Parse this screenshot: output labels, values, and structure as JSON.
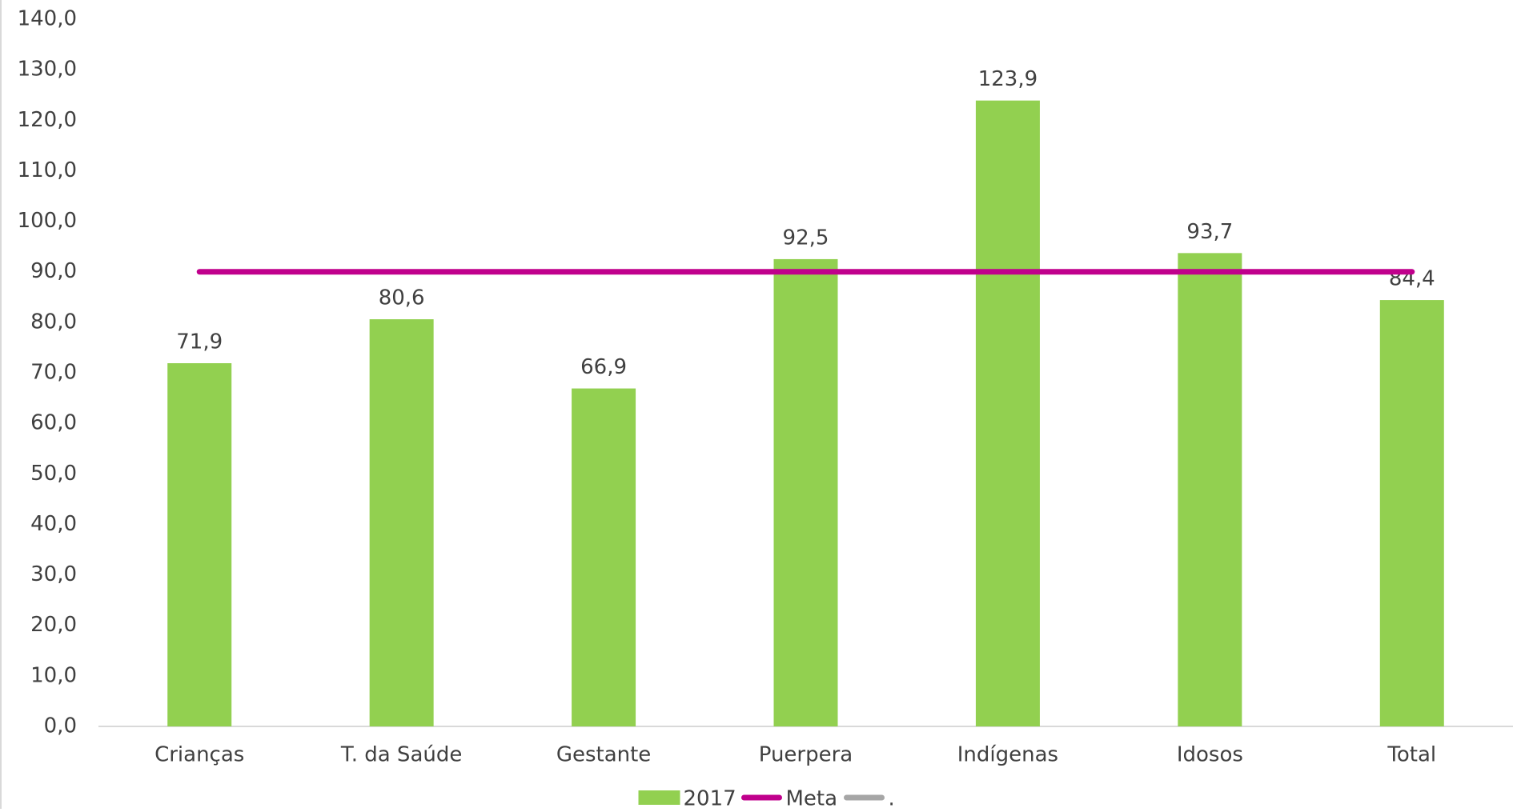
{
  "chart_data": {
    "type": "bar",
    "categories": [
      "Crianças",
      "T. da Saúde",
      "Gestante",
      "Puerpera",
      "Indígenas",
      "Idosos",
      "Total"
    ],
    "series": [
      {
        "name": "2017",
        "type": "bar",
        "color": "#92d050",
        "values": [
          71.9,
          80.6,
          66.9,
          92.5,
          123.9,
          93.7,
          84.4
        ],
        "value_labels": [
          "71,9",
          "80,6",
          "66,9",
          "92,5",
          "123,9",
          "93,7",
          "84,4"
        ]
      },
      {
        "name": "Meta",
        "type": "line",
        "color": "#c0008c",
        "values": [
          90,
          90,
          90,
          90,
          90,
          90,
          90
        ]
      },
      {
        "name": ".",
        "type": "line",
        "color": "#a6a6a6",
        "values": [
          null,
          null,
          null,
          null,
          null,
          null,
          null
        ]
      }
    ],
    "ylim": [
      0,
      140
    ],
    "yticks": [
      {
        "value": 0,
        "label": "0,0"
      },
      {
        "value": 10,
        "label": "10,0"
      },
      {
        "value": 20,
        "label": "20,0"
      },
      {
        "value": 30,
        "label": "30,0"
      },
      {
        "value": 40,
        "label": "40,0"
      },
      {
        "value": 50,
        "label": "50,0"
      },
      {
        "value": 60,
        "label": "60,0"
      },
      {
        "value": 70,
        "label": "70,0"
      },
      {
        "value": 80,
        "label": "80,0"
      },
      {
        "value": 90,
        "label": "90,0"
      },
      {
        "value": 100,
        "label": "100,0"
      },
      {
        "value": 110,
        "label": "110,0"
      },
      {
        "value": 120,
        "label": "120,0"
      },
      {
        "value": 130,
        "label": "130,0"
      },
      {
        "value": 140,
        "label": "140,0"
      }
    ],
    "grid": false,
    "legend": "bottom"
  }
}
